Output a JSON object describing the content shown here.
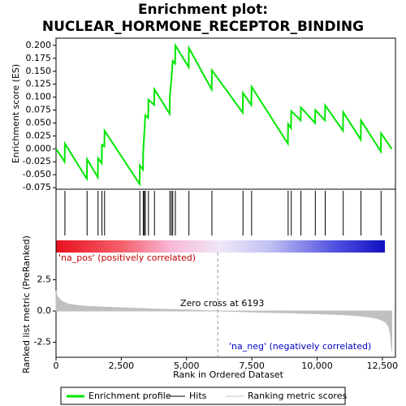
{
  "chart_data": [
    {
      "type": "line",
      "title": "Enrichment plot: NUCLEAR_HORMONE_RECEPTOR_BINDING",
      "y_label": "Enrichment score (ES)",
      "xlim": [
        0,
        13000
      ],
      "ylim": [
        -0.078,
        0.214
      ],
      "yticks": [
        {
          "value": -0.075,
          "label": "-0.075"
        },
        {
          "value": -0.05,
          "label": "-0.050"
        },
        {
          "value": -0.025,
          "label": "-0.025"
        },
        {
          "value": 0,
          "label": "0.000"
        },
        {
          "value": 0.025,
          "label": "0.025"
        },
        {
          "value": 0.05,
          "label": "0.050"
        },
        {
          "value": 0.075,
          "label": "0.075"
        },
        {
          "value": 0.1,
          "label": "0.100"
        },
        {
          "value": 0.125,
          "label": "0.125"
        },
        {
          "value": 0.15,
          "label": "0.150"
        },
        {
          "value": 0.175,
          "label": "0.175"
        },
        {
          "value": 0.2,
          "label": "0.200"
        }
      ],
      "series": [
        {
          "name": "Enrichment profile",
          "color": "#00e600",
          "x": [
            0,
            330,
            340,
            1180,
            1190,
            1600,
            1610,
            1750,
            1760,
            1850,
            1860,
            3200,
            3210,
            3330,
            3340,
            3380,
            3420,
            3530,
            3540,
            3760,
            3770,
            4350,
            4360,
            4420,
            4470,
            4560,
            4570,
            5080,
            5090,
            5960,
            5970,
            7150,
            7160,
            7480,
            7490,
            8880,
            8890,
            9000,
            9010,
            9370,
            9380,
            9920,
            9930,
            10300,
            10310,
            10990,
            11000,
            11670,
            11680,
            12440,
            12450,
            12860
          ],
          "values": [
            0,
            -0.025,
            0.01,
            -0.058,
            -0.02,
            -0.055,
            -0.018,
            -0.028,
            0.008,
            0.005,
            0.035,
            -0.068,
            -0.032,
            -0.04,
            -0.005,
            0.03,
            0.065,
            0.06,
            0.095,
            0.085,
            0.115,
            0.068,
            0.102,
            0.135,
            0.17,
            0.165,
            0.2,
            0.158,
            0.195,
            0.115,
            0.152,
            0.07,
            0.108,
            0.085,
            0.12,
            0.01,
            0.048,
            0.04,
            0.073,
            0.055,
            0.08,
            0.05,
            0.075,
            0.055,
            0.084,
            0.035,
            0.071,
            0.018,
            0.055,
            -0.005,
            0.03,
            0
          ]
        }
      ],
      "hits": {
        "name": "Hits",
        "color": "#000000",
        "x": [
          340,
          1190,
          1610,
          1760,
          1860,
          3210,
          3340,
          3380,
          3420,
          3540,
          3770,
          4360,
          4420,
          4470,
          4570,
          5090,
          5970,
          7160,
          7490,
          8890,
          9010,
          9380,
          9930,
          10310,
          11000,
          11680,
          12450
        ]
      }
    },
    {
      "type": "area",
      "x_label": "Rank in Ordered Dataset",
      "y_label": "Ranked list metric (PreRanked)",
      "xlim": [
        0,
        13000
      ],
      "ylim": [
        -3.7,
        4.68
      ],
      "xticks": [
        0,
        {
          "value": 2500,
          "label": "2,500"
        },
        {
          "value": 5000,
          "label": "5,000"
        },
        {
          "value": 7500,
          "label": "7,500"
        },
        {
          "value": 10000,
          "label": "10,000"
        },
        {
          "value": 12500,
          "label": "12,500"
        }
      ],
      "yticks": [
        -2.5,
        {
          "value": 0,
          "label": "0.0"
        },
        2.5
      ],
      "series": [
        {
          "name": "Ranking metric scores",
          "color": "#c0c0c0",
          "x": [
            0,
            50,
            150,
            300,
            500,
            800,
            1200,
            2000,
            3000,
            4000,
            5000,
            6193,
            7000,
            8000,
            9000,
            10000,
            11000,
            11600,
            12000,
            12300,
            12500,
            12650,
            12750,
            12800,
            12840,
            12860
          ],
          "values": [
            1.6,
            1.2,
            0.9,
            0.7,
            0.55,
            0.45,
            0.38,
            0.3,
            0.22,
            0.15,
            0.08,
            0,
            -0.05,
            -0.1,
            -0.15,
            -0.22,
            -0.3,
            -0.38,
            -0.48,
            -0.6,
            -0.75,
            -0.95,
            -1.3,
            -1.8,
            -2.6,
            -3.2
          ]
        }
      ],
      "zero_cross": 6193,
      "zero_cross_label": "Zero cross at 6193",
      "pos_label": "'na_pos' (positively correlated)",
      "neg_label": "'na_neg' (negatively correlated)"
    }
  ]
}
